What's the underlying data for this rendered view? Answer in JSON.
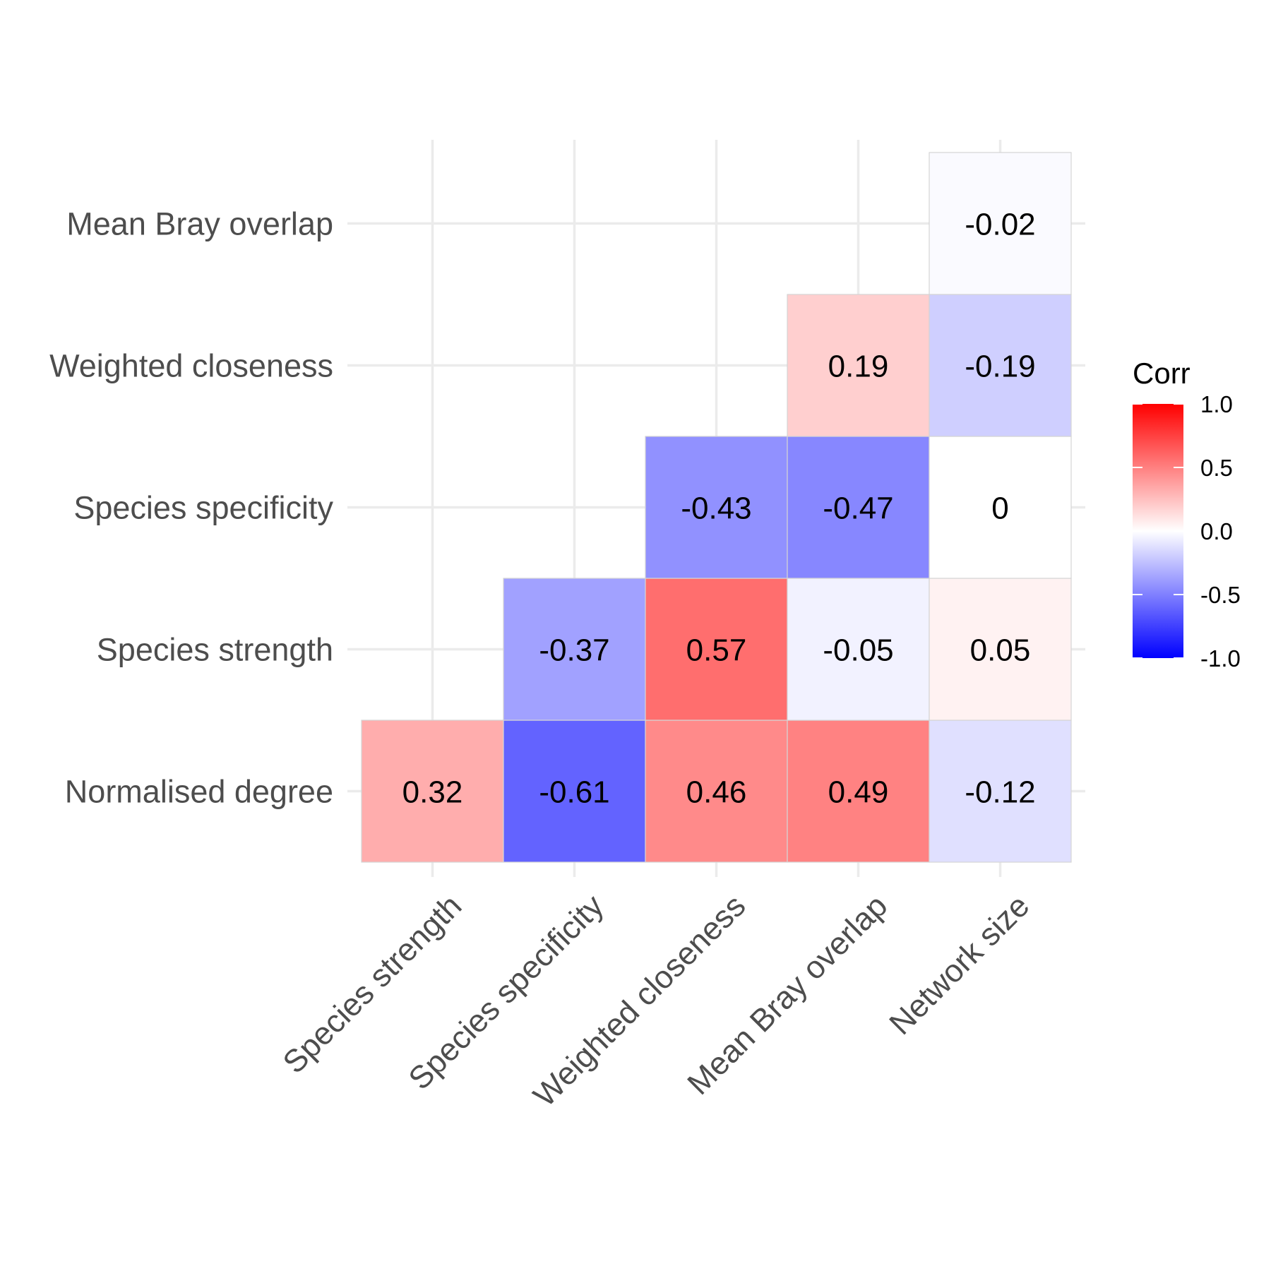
{
  "chart_data": {
    "type": "heatmap",
    "title": "",
    "xlabel": "",
    "ylabel": "",
    "x_categories": [
      "Species strength",
      "Species specificity",
      "Weighted closeness",
      "Mean Bray overlap",
      "Network size"
    ],
    "y_categories": [
      "Normalised degree",
      "Species strength",
      "Species specificity",
      "Weighted closeness",
      "Mean Bray overlap"
    ],
    "cells": [
      {
        "x": "Species strength",
        "y": "Normalised degree",
        "value": 0.32,
        "label": "0.32"
      },
      {
        "x": "Species specificity",
        "y": "Normalised degree",
        "value": -0.61,
        "label": "-0.61"
      },
      {
        "x": "Weighted closeness",
        "y": "Normalised degree",
        "value": 0.46,
        "label": "0.46"
      },
      {
        "x": "Mean Bray overlap",
        "y": "Normalised degree",
        "value": 0.49,
        "label": "0.49"
      },
      {
        "x": "Network size",
        "y": "Normalised degree",
        "value": -0.12,
        "label": "-0.12"
      },
      {
        "x": "Species specificity",
        "y": "Species strength",
        "value": -0.37,
        "label": "-0.37"
      },
      {
        "x": "Weighted closeness",
        "y": "Species strength",
        "value": 0.57,
        "label": "0.57"
      },
      {
        "x": "Mean Bray overlap",
        "y": "Species strength",
        "value": -0.05,
        "label": "-0.05"
      },
      {
        "x": "Network size",
        "y": "Species strength",
        "value": 0.05,
        "label": "0.05"
      },
      {
        "x": "Weighted closeness",
        "y": "Species specificity",
        "value": -0.43,
        "label": "-0.43"
      },
      {
        "x": "Mean Bray overlap",
        "y": "Species specificity",
        "value": -0.47,
        "label": "-0.47"
      },
      {
        "x": "Network size",
        "y": "Species specificity",
        "value": 0,
        "label": "0"
      },
      {
        "x": "Mean Bray overlap",
        "y": "Weighted closeness",
        "value": 0.19,
        "label": "0.19"
      },
      {
        "x": "Network size",
        "y": "Weighted closeness",
        "value": -0.19,
        "label": "-0.19"
      },
      {
        "x": "Network size",
        "y": "Mean Bray overlap",
        "value": -0.02,
        "label": "-0.02"
      }
    ],
    "legend": {
      "title": "Corr",
      "placement": "right",
      "range": [
        -1,
        1
      ],
      "ticks": [
        1,
        0.5,
        0,
        -0.5,
        -1
      ],
      "tick_labels": [
        "1.0",
        "0.5",
        "0.0",
        "-0.5",
        "-1.0"
      ],
      "colors": {
        "low": "#0000ff",
        "mid": "#ffffff",
        "high": "#ff0000"
      }
    },
    "grid": true
  }
}
